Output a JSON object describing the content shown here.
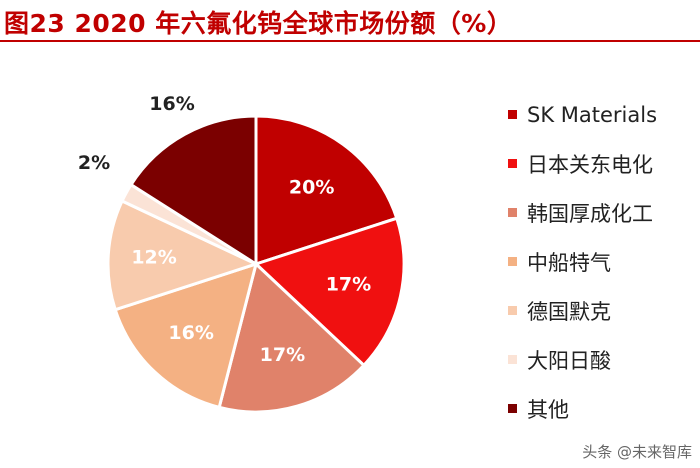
{
  "header": {
    "title": "图23  2020 年六氟化钨全球市场份额（%）"
  },
  "watermark": {
    "text": "头条 @未来智库"
  },
  "colors": {
    "title": "#c00000",
    "slice_border": "#ffffff"
  },
  "chart_data": {
    "type": "pie",
    "title": "2020 年六氟化钨全球市场份额（%）",
    "legend_position": "right",
    "start_angle_deg": 0,
    "direction": "clockwise",
    "slices": [
      {
        "name": "SK Materials",
        "value": 20,
        "label": "20%",
        "color": "#c00000",
        "label_color": "#ffffff"
      },
      {
        "name": "日本关东电化",
        "value": 17,
        "label": "17%",
        "color": "#f01010",
        "label_color": "#ffffff"
      },
      {
        "name": "韩国厚成化工",
        "value": 17,
        "label": "17%",
        "color": "#e0826a",
        "label_color": "#ffffff"
      },
      {
        "name": "中船特气",
        "value": 16,
        "label": "16%",
        "color": "#f4b183",
        "label_color": "#ffffff"
      },
      {
        "name": "德国默克",
        "value": 12,
        "label": "12%",
        "color": "#f8cbad",
        "label_color": "#ffffff"
      },
      {
        "name": "大阳日酸",
        "value": 2,
        "label": "2%",
        "color": "#fbe3d6",
        "label_color": "#222222"
      },
      {
        "name": "其他",
        "value": 16,
        "label": "16%",
        "color": "#7b0000",
        "label_color": "#222222"
      }
    ]
  }
}
